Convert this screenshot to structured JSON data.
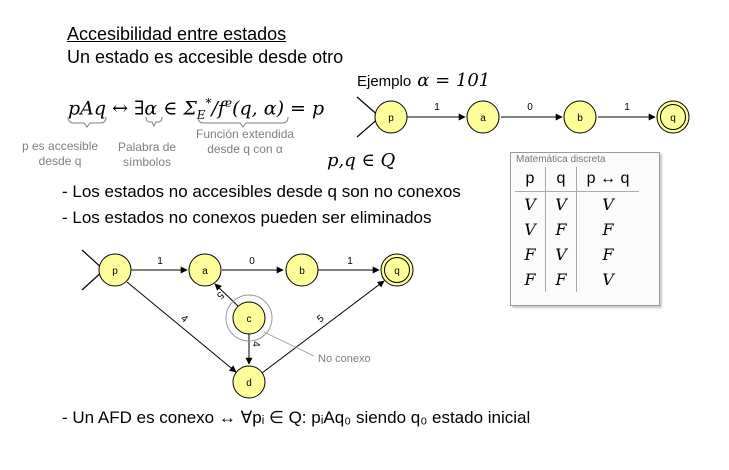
{
  "title": "Accesibilidad entre estados",
  "subtitle": "Un estado es accesible desde otro",
  "example": {
    "label": "Ejemplo",
    "equation": "α = 101"
  },
  "formula": "pAq ↔ ∃α ∈ Σ_E*/f^e(q,α) = p",
  "formula_notes": {
    "pAq": [
      "p es accesible",
      "desde q"
    ],
    "alpha": [
      "Palabra de",
      "símbolos"
    ],
    "fe": [
      "Función extendida",
      "desde q con α"
    ]
  },
  "domain": "p,q ∈ Q",
  "bullets": [
    "- Los estados no accesibles desde q son no conexos",
    "- Los estados no conexos pueden ser eliminados",
    "- Un AFD es conexo ↔ ∀pᵢ ∈ Q: pᵢAq₀ siendo q₀ estado inicial"
  ],
  "truth_table": {
    "caption": "Matemática discreta",
    "headers": [
      "p",
      "q",
      "p ↔ q"
    ],
    "rows": [
      [
        "V",
        "V",
        "V"
      ],
      [
        "V",
        "F",
        "F"
      ],
      [
        "F",
        "V",
        "F"
      ],
      [
        "F",
        "F",
        "V"
      ]
    ]
  },
  "diagram_top": {
    "states": [
      "p",
      "a",
      "b",
      "q"
    ],
    "transitions": [
      "1",
      "0",
      "1"
    ]
  },
  "diagram_bottom": {
    "states": [
      "p",
      "a",
      "b",
      "q",
      "c",
      "d"
    ],
    "transitions": {
      "p_a": "1",
      "a_b": "0",
      "b_q": "1",
      "c_a": "5",
      "c_d": "4",
      "p_d": "4",
      "d_q": "5"
    },
    "annotation": "No conexo"
  },
  "colors": {
    "state_fill": "#ffff99",
    "state_stroke": "#000000",
    "note_gray": "#7f7f7f"
  }
}
